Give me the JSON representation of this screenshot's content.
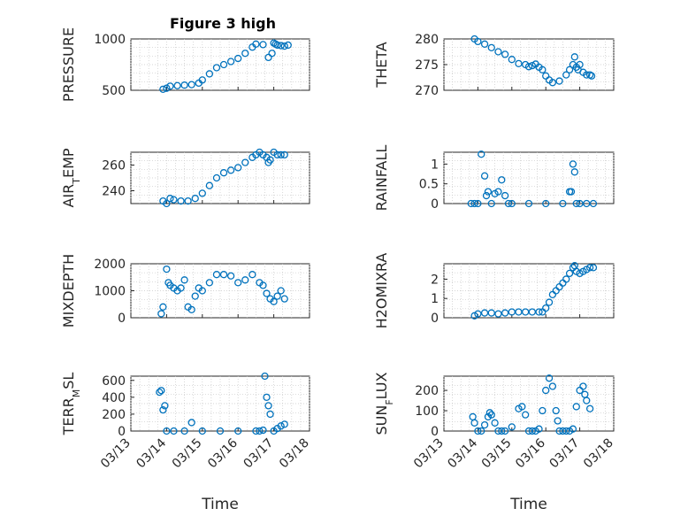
{
  "figure": {
    "title": "Figure 3 high",
    "colors": {
      "marker": "#0072BD",
      "axis": "#262626",
      "grid": "#c8c8c8"
    }
  },
  "chart_data": [
    {
      "type": "scatter",
      "ylabel": "PRESSURE",
      "ylim": [
        500,
        1000
      ],
      "yticks": [
        "500",
        "1000"
      ],
      "xticks": [],
      "x": [
        0.9,
        1.0,
        1.1,
        1.3,
        1.5,
        1.7,
        1.9,
        2.0,
        2.2,
        2.4,
        2.6,
        2.8,
        3.0,
        3.2,
        3.4,
        3.5,
        3.7,
        3.85,
        3.95,
        4.0,
        4.05,
        4.1,
        4.2,
        4.3,
        4.4
      ],
      "y": [
        510,
        520,
        540,
        545,
        550,
        555,
        570,
        600,
        660,
        720,
        750,
        780,
        810,
        860,
        920,
        950,
        945,
        820,
        860,
        960,
        950,
        940,
        935,
        930,
        940
      ]
    },
    {
      "type": "scatter",
      "ylabel": "THETA",
      "ylim": [
        270,
        280
      ],
      "yticks": [
        "270",
        "275",
        "280"
      ],
      "xticks": [],
      "x": [
        0.9,
        1.0,
        1.2,
        1.4,
        1.6,
        1.8,
        2.0,
        2.2,
        2.4,
        2.5,
        2.6,
        2.7,
        2.8,
        2.9,
        3.0,
        3.1,
        3.2,
        3.4,
        3.6,
        3.7,
        3.8,
        3.85,
        3.9,
        3.95,
        4.0,
        4.1,
        4.2,
        4.3,
        4.35
      ],
      "y": [
        280.2,
        279.5,
        279,
        278.3,
        277.5,
        277,
        276,
        275.2,
        275,
        274.6,
        274.8,
        275.1,
        274.5,
        274,
        272.8,
        272,
        271.5,
        271.8,
        273,
        274,
        275,
        276.5,
        274.5,
        274,
        275,
        273.5,
        273,
        273,
        272.8
      ]
    },
    {
      "type": "scatter",
      "ylabel": "AIR_TEMP",
      "ylim": [
        230,
        270
      ],
      "yticks": [
        "240",
        "260"
      ],
      "xticks": [],
      "x": [
        0.9,
        1.0,
        1.1,
        1.2,
        1.4,
        1.6,
        1.8,
        2.0,
        2.2,
        2.4,
        2.6,
        2.8,
        3.0,
        3.2,
        3.4,
        3.5,
        3.6,
        3.7,
        3.8,
        3.85,
        3.9,
        4.0,
        4.1,
        4.2,
        4.3
      ],
      "y": [
        232,
        230,
        234,
        233,
        232,
        232,
        234,
        238,
        244,
        250,
        254,
        256,
        258,
        262,
        266,
        268,
        270,
        268,
        266,
        262,
        264,
        270,
        268,
        268,
        268
      ]
    },
    {
      "type": "scatter",
      "ylabel": "RAINFALL",
      "ylim": [
        0,
        1.3
      ],
      "yticks": [
        "0",
        "0.5",
        "1"
      ],
      "xticks": [],
      "x": [
        0.8,
        0.9,
        1.0,
        1.1,
        1.2,
        1.25,
        1.3,
        1.4,
        1.5,
        1.6,
        1.7,
        1.8,
        1.9,
        2.0,
        2.5,
        3.0,
        3.5,
        3.7,
        3.75,
        3.8,
        3.85,
        3.9,
        4.0,
        4.2,
        4.4
      ],
      "y": [
        0,
        0,
        0,
        1.25,
        0.7,
        0.2,
        0.3,
        0,
        0.25,
        0.3,
        0.6,
        0.2,
        0,
        0,
        0,
        0,
        0,
        0.3,
        0.3,
        1.0,
        0.8,
        0,
        0,
        0,
        0
      ]
    },
    {
      "type": "scatter",
      "ylabel": "MIXDEPTH",
      "ylim": [
        0,
        2000
      ],
      "yticks": [
        "0",
        "1000",
        "2000"
      ],
      "xticks": [],
      "x": [
        0.85,
        0.9,
        1.0,
        1.05,
        1.1,
        1.2,
        1.3,
        1.4,
        1.5,
        1.6,
        1.7,
        1.8,
        1.9,
        2.0,
        2.2,
        2.4,
        2.6,
        2.8,
        3.0,
        3.2,
        3.4,
        3.6,
        3.7,
        3.8,
        3.9,
        4.0,
        4.1,
        4.2,
        4.3
      ],
      "y": [
        150,
        400,
        1800,
        1300,
        1200,
        1100,
        1000,
        1100,
        1400,
        400,
        300,
        800,
        1100,
        1000,
        1300,
        1600,
        1600,
        1550,
        1300,
        1400,
        1600,
        1300,
        1200,
        900,
        700,
        600,
        800,
        1000,
        700
      ]
    },
    {
      "type": "scatter",
      "ylabel": "H2OMIXRA",
      "ylim": [
        0,
        2.8
      ],
      "yticks": [
        "0",
        "1",
        "2"
      ],
      "xticks": [],
      "x": [
        0.9,
        1.0,
        1.2,
        1.4,
        1.6,
        1.8,
        2.0,
        2.2,
        2.4,
        2.6,
        2.8,
        2.9,
        3.0,
        3.1,
        3.2,
        3.3,
        3.4,
        3.5,
        3.6,
        3.7,
        3.8,
        3.85,
        3.9,
        4.0,
        4.1,
        4.2,
        4.3,
        4.4
      ],
      "y": [
        0.1,
        0.2,
        0.25,
        0.25,
        0.2,
        0.25,
        0.3,
        0.3,
        0.3,
        0.3,
        0.3,
        0.3,
        0.5,
        0.8,
        1.2,
        1.4,
        1.6,
        1.8,
        2.0,
        2.3,
        2.6,
        2.7,
        2.4,
        2.3,
        2.4,
        2.5,
        2.6,
        2.6
      ]
    },
    {
      "type": "scatter",
      "ylabel": "TERR_MSL",
      "ylim": [
        0,
        650
      ],
      "yticks": [
        "0",
        "200",
        "400",
        "600"
      ],
      "xticks": [
        "03/13",
        "03/14",
        "03/15",
        "03/16",
        "03/17",
        "03/18"
      ],
      "xlabel": "Time",
      "x": [
        0.8,
        0.85,
        0.9,
        0.95,
        1.0,
        1.2,
        1.5,
        1.7,
        2.0,
        2.5,
        3.0,
        3.5,
        3.6,
        3.7,
        3.75,
        3.8,
        3.85,
        3.9,
        4.0,
        4.1,
        4.2,
        4.3
      ],
      "y": [
        460,
        480,
        250,
        300,
        0,
        0,
        0,
        100,
        0,
        0,
        0,
        0,
        0,
        10,
        650,
        400,
        300,
        200,
        0,
        30,
        60,
        80
      ]
    },
    {
      "type": "scatter",
      "ylabel": "SUN_FLUX",
      "ylim": [
        0,
        270
      ],
      "yticks": [
        "0",
        "100",
        "200"
      ],
      "xticks": [
        "03/13",
        "03/14",
        "03/15",
        "03/16",
        "03/17",
        "03/18"
      ],
      "xlabel": "Time",
      "x": [
        0.85,
        0.9,
        1.0,
        1.1,
        1.2,
        1.3,
        1.35,
        1.4,
        1.5,
        1.6,
        1.7,
        1.8,
        2.0,
        2.2,
        2.3,
        2.4,
        2.5,
        2.6,
        2.7,
        2.8,
        2.9,
        3.0,
        3.1,
        3.2,
        3.3,
        3.35,
        3.4,
        3.5,
        3.6,
        3.7,
        3.8,
        3.9,
        4.0,
        4.1,
        4.15,
        4.2,
        4.3
      ],
      "y": [
        70,
        40,
        0,
        0,
        30,
        70,
        90,
        80,
        40,
        0,
        0,
        0,
        20,
        110,
        120,
        80,
        0,
        0,
        0,
        10,
        100,
        200,
        260,
        220,
        100,
        50,
        0,
        0,
        0,
        0,
        10,
        120,
        200,
        220,
        180,
        150,
        110
      ]
    }
  ]
}
